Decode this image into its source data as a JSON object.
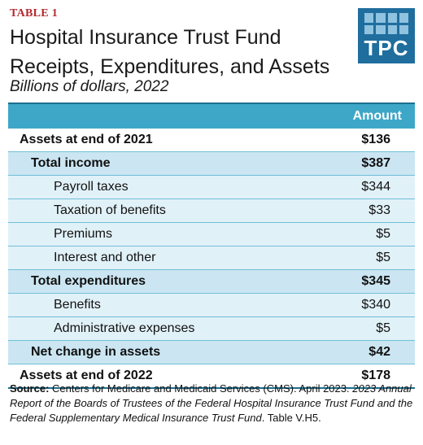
{
  "header": {
    "tag": "TABLE 1",
    "title": "Hospital Insurance Trust Fund Receipts, Expenditures, and Assets",
    "subtitle": "Billions of dollars, 2022",
    "logo_text": "TPC"
  },
  "table": {
    "column_header": "Amount",
    "rows": [
      {
        "label": "Assets at end of 2021",
        "value": "$136",
        "level": 0,
        "bold": true
      },
      {
        "label": "Total income",
        "value": "$387",
        "level": 1,
        "bold": true
      },
      {
        "label": "Payroll taxes",
        "value": "$344",
        "level": 2,
        "bold": false
      },
      {
        "label": "Taxation of benefits",
        "value": "$33",
        "level": 2,
        "bold": false
      },
      {
        "label": "Premiums",
        "value": "$5",
        "level": 2,
        "bold": false
      },
      {
        "label": "Interest and other",
        "value": "$5",
        "level": 2,
        "bold": false
      },
      {
        "label": "Total expenditures",
        "value": "$345",
        "level": 1,
        "bold": true
      },
      {
        "label": "Benefits",
        "value": "$340",
        "level": 2,
        "bold": false
      },
      {
        "label": "Administrative expenses",
        "value": "$5",
        "level": 2,
        "bold": false
      },
      {
        "label": "Net change in assets",
        "value": "$42",
        "level": 1,
        "bold": true
      },
      {
        "label": "Assets at end of 2022",
        "value": "$178",
        "level": 0,
        "bold": true
      }
    ]
  },
  "source": {
    "label": "Source:",
    "text1": " Centers for Medicare and Medicaid Services (CMS). April 2023. ",
    "report_title": "2023 Annual Report of the Boards of Trustees of the Federal Hospital Insurance Trust Fund and the Federal Supplementary Medical Insurance Trust Fund",
    "text2": ". Table V.H5."
  },
  "colors": {
    "accent": "#b3292e",
    "header_bg": "#3ea7c8",
    "row_bg": "#e1f1f8",
    "logo_bg": "#1f6e9e"
  }
}
